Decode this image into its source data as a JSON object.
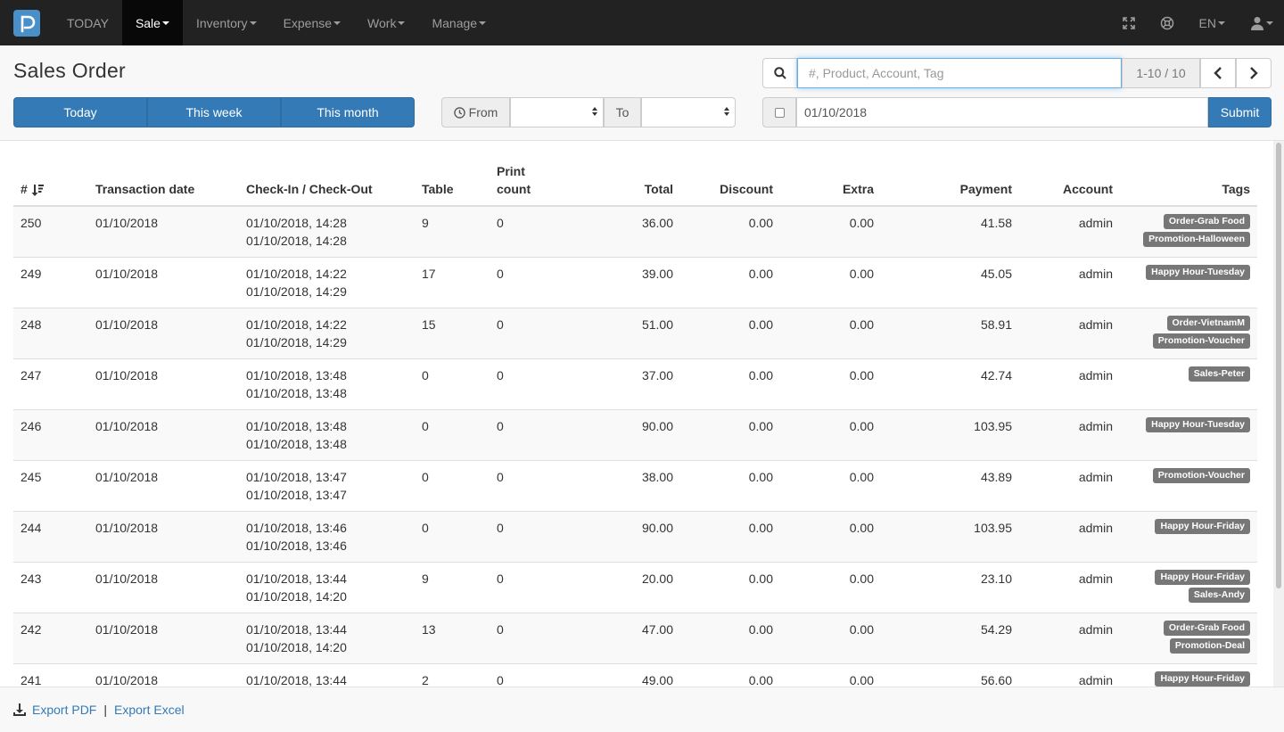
{
  "nav": {
    "logo_icon": "p-logo-icon",
    "items": [
      {
        "label": "TODAY",
        "caret": false
      },
      {
        "label": "Sale",
        "caret": true
      },
      {
        "label": "Inventory",
        "caret": true
      },
      {
        "label": "Expense",
        "caret": true
      },
      {
        "label": "Work",
        "caret": true
      },
      {
        "label": "Manage",
        "caret": true
      }
    ],
    "active_index": 1,
    "right": {
      "fullscreen_icon": "expand-icon",
      "globe_icon": "globe-icon",
      "language": "EN",
      "user_icon": "user-icon"
    }
  },
  "page": {
    "title": "Sales Order"
  },
  "range_buttons": [
    "Today",
    "This week",
    "This month"
  ],
  "filter": {
    "from_label": "From",
    "to_label": "To",
    "from_value": "",
    "to_value": ""
  },
  "search": {
    "placeholder": "#, Product, Account, Tag",
    "value": "",
    "pager": "1-10 / 10"
  },
  "date_filter": {
    "checked": false,
    "value": "01/10/2018",
    "submit": "Submit"
  },
  "table": {
    "headers": {
      "num": "#",
      "date": "Transaction date",
      "check": "Check-In / Check-Out",
      "table": "Table",
      "print_line1": "Print",
      "print_line2": "count",
      "total": "Total",
      "discount": "Discount",
      "extra": "Extra",
      "payment": "Payment",
      "account": "Account",
      "tags": "Tags"
    },
    "rows": [
      {
        "num": "250",
        "date": "01/10/2018",
        "check_in": "01/10/2018, 14:28",
        "check_out": "01/10/2018, 14:28",
        "table": "9",
        "print": "0",
        "total": "36.00",
        "discount": "0.00",
        "extra": "0.00",
        "payment": "41.58",
        "account": "admin",
        "tags": [
          "Order-Grab Food",
          "Promotion-Halloween"
        ]
      },
      {
        "num": "249",
        "date": "01/10/2018",
        "check_in": "01/10/2018, 14:22",
        "check_out": "01/10/2018, 14:29",
        "table": "17",
        "print": "0",
        "total": "39.00",
        "discount": "0.00",
        "extra": "0.00",
        "payment": "45.05",
        "account": "admin",
        "tags": [
          "Happy Hour-Tuesday"
        ]
      },
      {
        "num": "248",
        "date": "01/10/2018",
        "check_in": "01/10/2018, 14:22",
        "check_out": "01/10/2018, 14:29",
        "table": "15",
        "print": "0",
        "total": "51.00",
        "discount": "0.00",
        "extra": "0.00",
        "payment": "58.91",
        "account": "admin",
        "tags": [
          "Order-VietnamM",
          "Promotion-Voucher"
        ]
      },
      {
        "num": "247",
        "date": "01/10/2018",
        "check_in": "01/10/2018, 13:48",
        "check_out": "01/10/2018, 13:48",
        "table": "0",
        "print": "0",
        "total": "37.00",
        "discount": "0.00",
        "extra": "0.00",
        "payment": "42.74",
        "account": "admin",
        "tags": [
          "Sales-Peter"
        ]
      },
      {
        "num": "246",
        "date": "01/10/2018",
        "check_in": "01/10/2018, 13:48",
        "check_out": "01/10/2018, 13:48",
        "table": "0",
        "print": "0",
        "total": "90.00",
        "discount": "0.00",
        "extra": "0.00",
        "payment": "103.95",
        "account": "admin",
        "tags": [
          "Happy Hour-Tuesday"
        ]
      },
      {
        "num": "245",
        "date": "01/10/2018",
        "check_in": "01/10/2018, 13:47",
        "check_out": "01/10/2018, 13:47",
        "table": "0",
        "print": "0",
        "total": "38.00",
        "discount": "0.00",
        "extra": "0.00",
        "payment": "43.89",
        "account": "admin",
        "tags": [
          "Promotion-Voucher"
        ]
      },
      {
        "num": "244",
        "date": "01/10/2018",
        "check_in": "01/10/2018, 13:46",
        "check_out": "01/10/2018, 13:46",
        "table": "0",
        "print": "0",
        "total": "90.00",
        "discount": "0.00",
        "extra": "0.00",
        "payment": "103.95",
        "account": "admin",
        "tags": [
          "Happy Hour-Friday"
        ]
      },
      {
        "num": "243",
        "date": "01/10/2018",
        "check_in": "01/10/2018, 13:44",
        "check_out": "01/10/2018, 14:20",
        "table": "9",
        "print": "0",
        "total": "20.00",
        "discount": "0.00",
        "extra": "0.00",
        "payment": "23.10",
        "account": "admin",
        "tags": [
          "Happy Hour-Friday",
          "Sales-Andy"
        ]
      },
      {
        "num": "242",
        "date": "01/10/2018",
        "check_in": "01/10/2018, 13:44",
        "check_out": "01/10/2018, 14:20",
        "table": "13",
        "print": "0",
        "total": "47.00",
        "discount": "0.00",
        "extra": "0.00",
        "payment": "54.29",
        "account": "admin",
        "tags": [
          "Order-Grab Food",
          "Promotion-Deal"
        ]
      },
      {
        "num": "241",
        "date": "01/10/2018",
        "check_in": "01/10/2018, 13:44",
        "check_out": "",
        "table": "2",
        "print": "0",
        "total": "49.00",
        "discount": "0.00",
        "extra": "0.00",
        "payment": "56.60",
        "account": "admin",
        "tags": [
          "Happy Hour-Friday"
        ]
      }
    ]
  },
  "footer": {
    "download_icon": "download-icon",
    "export_pdf": "Export PDF",
    "separator": "|",
    "export_excel": "Export Excel"
  },
  "colors": {
    "navbar": "#222222",
    "primary": "#337ab7",
    "tag": "#777777"
  }
}
